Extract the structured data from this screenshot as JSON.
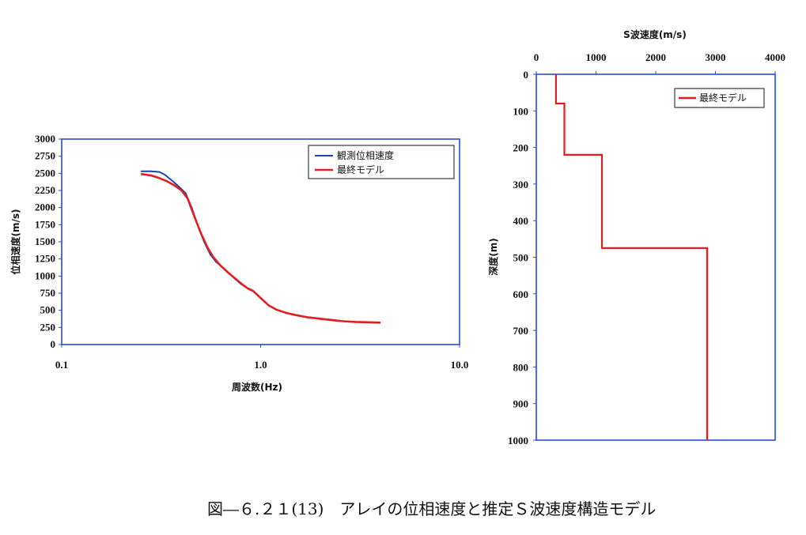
{
  "caption": "図―６.２１(13)　アレイの位相速度と推定Ｓ波速度構造モデル",
  "chart_data": [
    {
      "type": "line",
      "xlabel": "周波数(Hz)",
      "ylabel": "位相速度(m/s)",
      "xscale": "log",
      "xlim": [
        0.1,
        10.0
      ],
      "ylim": [
        0,
        3000
      ],
      "xticks": [
        "0.1",
        "1.0",
        "10.0"
      ],
      "yticks": [
        0,
        250,
        500,
        750,
        1000,
        1250,
        1500,
        1750,
        2000,
        2250,
        2500,
        2750,
        3000
      ],
      "grid": false,
      "legend_position": "top-right",
      "series": [
        {
          "name": "観測位相速度",
          "color": "#1f3fb4",
          "x": [
            0.25,
            0.28,
            0.31,
            0.33,
            0.36,
            0.39,
            0.42,
            0.45,
            0.48,
            0.52,
            0.56,
            0.6,
            0.65,
            0.7,
            0.75,
            0.8,
            0.85,
            0.9,
            1.0,
            1.1,
            1.2,
            1.35,
            1.5,
            1.7,
            2.0,
            2.3,
            2.6,
            3.0,
            3.5,
            4.0
          ],
          "y": [
            2530,
            2530,
            2520,
            2480,
            2390,
            2300,
            2210,
            2000,
            1760,
            1500,
            1310,
            1200,
            1120,
            1030,
            950,
            880,
            830,
            800,
            680,
            570,
            510,
            460,
            430,
            400,
            380,
            360,
            340,
            330,
            325,
            320
          ]
        },
        {
          "name": "最終モデル",
          "color": "#e02020",
          "x": [
            0.25,
            0.28,
            0.31,
            0.34,
            0.37,
            0.4,
            0.43,
            0.46,
            0.5,
            0.54,
            0.58,
            0.63,
            0.68,
            0.74,
            0.8,
            0.86,
            0.92,
            1.0,
            1.1,
            1.2,
            1.35,
            1.5,
            1.7,
            2.0,
            2.3,
            2.6,
            3.0,
            3.5,
            4.0
          ],
          "y": [
            2490,
            2470,
            2430,
            2380,
            2320,
            2250,
            2130,
            1900,
            1630,
            1420,
            1270,
            1150,
            1060,
            970,
            890,
            820,
            780,
            680,
            570,
            510,
            460,
            430,
            400,
            375,
            355,
            340,
            330,
            325,
            320
          ]
        }
      ]
    },
    {
      "type": "line",
      "xlabel": "S波速度(m/s)",
      "ylabel": "深度(m)",
      "xlim": [
        0,
        4000
      ],
      "ylim": [
        0,
        1000
      ],
      "y_inverted": true,
      "x_axis_position": "top",
      "xticks": [
        0,
        1000,
        2000,
        3000,
        4000
      ],
      "yticks": [
        0,
        100,
        200,
        300,
        400,
        500,
        600,
        700,
        800,
        900,
        1000
      ],
      "grid": false,
      "legend_position": "top-right",
      "series": [
        {
          "name": "最終モデル",
          "color": "#e02020",
          "x": [
            330,
            330,
            470,
            470,
            1100,
            1100,
            2860,
            2860
          ],
          "y": [
            0,
            80,
            80,
            220,
            220,
            475,
            475,
            1000
          ]
        }
      ]
    }
  ]
}
